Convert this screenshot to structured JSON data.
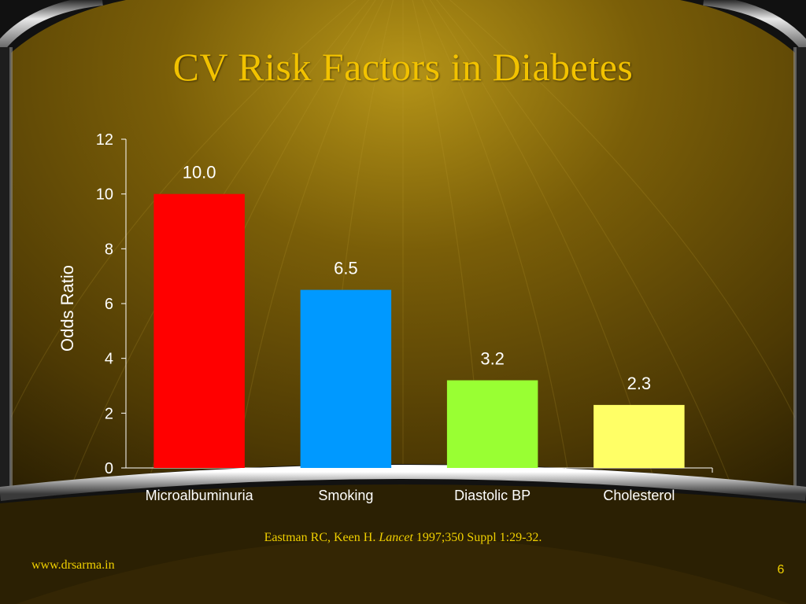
{
  "slide": {
    "title": "CV Risk Factors in Diabetes",
    "citation": {
      "authors": "Eastman RC, Keen H.",
      "journal": "Lancet",
      "details": "1997;350 Suppl 1:29-32."
    },
    "footer_url": "www.drsarma.in",
    "page_number": "6"
  },
  "colors": {
    "title": "#f2c200",
    "axis_text": "#ffffff",
    "footer_text": "#f0d000"
  },
  "chart_data": {
    "type": "bar",
    "categories": [
      "Microalbuminuria",
      "Smoking",
      "Diastolic BP",
      "Cholesterol"
    ],
    "values": [
      10.0,
      6.5,
      3.2,
      2.3
    ],
    "data_labels": [
      "10.0",
      "6.5",
      "3.2",
      "2.3"
    ],
    "bar_colors": [
      "#ff0000",
      "#0099ff",
      "#99ff33",
      "#ffff66"
    ],
    "ylabel": "Odds Ratio",
    "xlabel": "",
    "ylim": [
      0,
      12
    ],
    "yticks": [
      0,
      2,
      4,
      6,
      8,
      10,
      12
    ],
    "grid": false,
    "legend": "none"
  }
}
